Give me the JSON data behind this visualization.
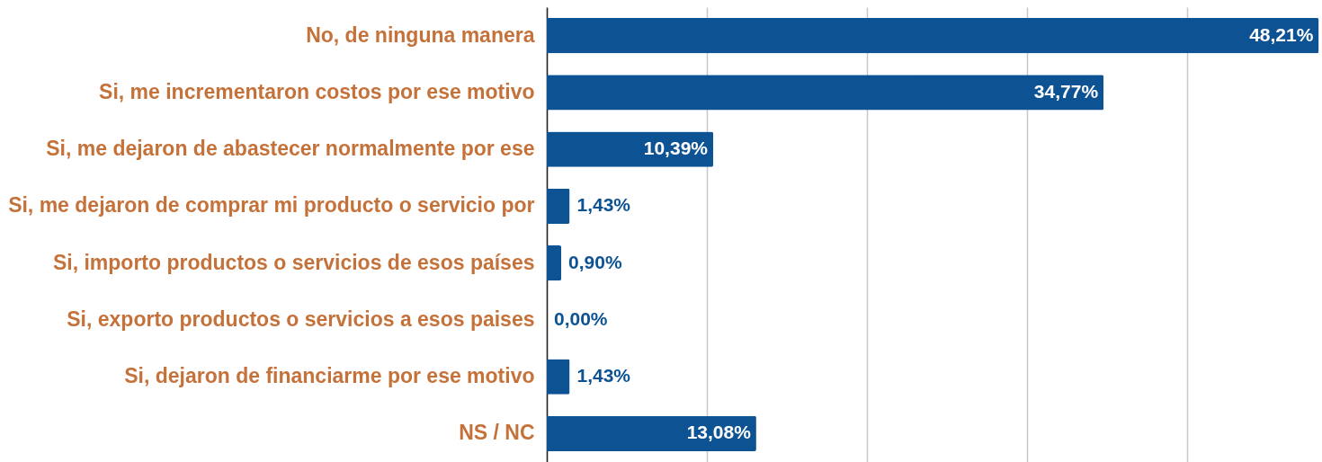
{
  "chart_data": {
    "type": "bar",
    "orientation": "horizontal",
    "categories": [
      "No, de ninguna manera",
      "Si, me incrementaron costos por ese motivo",
      "Si, me dejaron de abastecer normalmente por ese",
      "Si, me dejaron de comprar mi producto o servicio por",
      "Si, importo productos o servicios de esos países",
      "Si, exporto productos o servicios a esos paises",
      "Si, dejaron de financiarme por ese motivo",
      "NS / NC"
    ],
    "values": [
      48.21,
      34.77,
      10.39,
      1.43,
      0.9,
      0.0,
      1.43,
      13.08
    ],
    "value_labels": [
      "48,21%",
      "34,77%",
      "10,39%",
      "1,43%",
      "0,90%",
      "0,00%",
      "1,43%",
      "13,08%"
    ],
    "color": "#0d5394",
    "xlim": [
      0,
      48.3
    ],
    "xticks": [
      {
        "value": 0,
        "label": null
      },
      {
        "value": 10,
        "label": null
      },
      {
        "value": 20,
        "label": null
      },
      {
        "value": 30,
        "label": null
      },
      {
        "value": 40,
        "label": null
      }
    ],
    "grid": "x",
    "tick_labels": "y"
  }
}
